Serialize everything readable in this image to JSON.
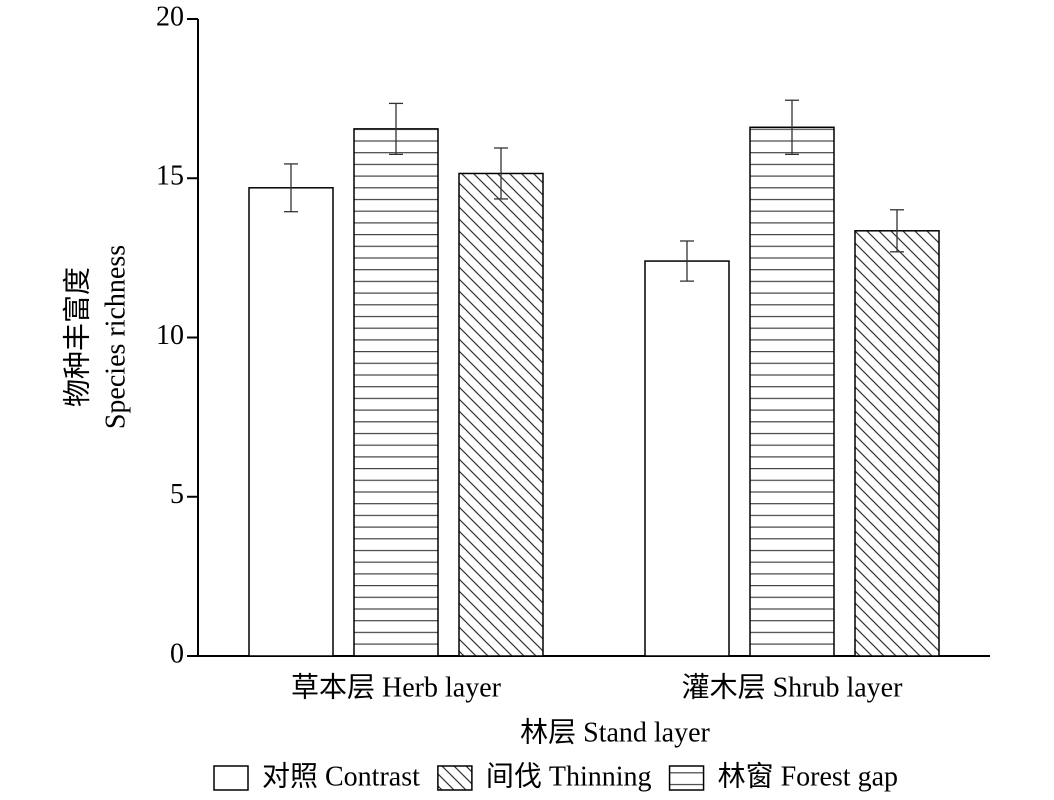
{
  "chart_data": {
    "type": "bar",
    "y_label": [
      "物种丰富度",
      "Species richness"
    ],
    "x_label": "林层 Stand layer",
    "categories": [
      "草本层 Herb layer",
      "灌木层 Shrub layer"
    ],
    "series": [
      {
        "name": "对照 Contrast",
        "color": "#000000",
        "pattern": "none",
        "values": [
          14.7,
          12.4
        ],
        "errors": [
          0.75,
          0.63
        ]
      },
      {
        "name": "间伐 Thinning",
        "color": "#000000",
        "pattern": "diagonal",
        "values": [
          15.15,
          13.35
        ],
        "errors": [
          0.8,
          0.66
        ]
      },
      {
        "name": "林窗 Forest gap",
        "color": "#000000",
        "pattern": "horizontal",
        "values": [
          16.55,
          16.6
        ],
        "errors": [
          0.8,
          0.85
        ]
      }
    ],
    "bar_order": [
      0,
      2,
      1
    ],
    "ylim": [
      0,
      20
    ],
    "yticks": [
      0,
      5,
      10,
      15,
      20
    ]
  }
}
